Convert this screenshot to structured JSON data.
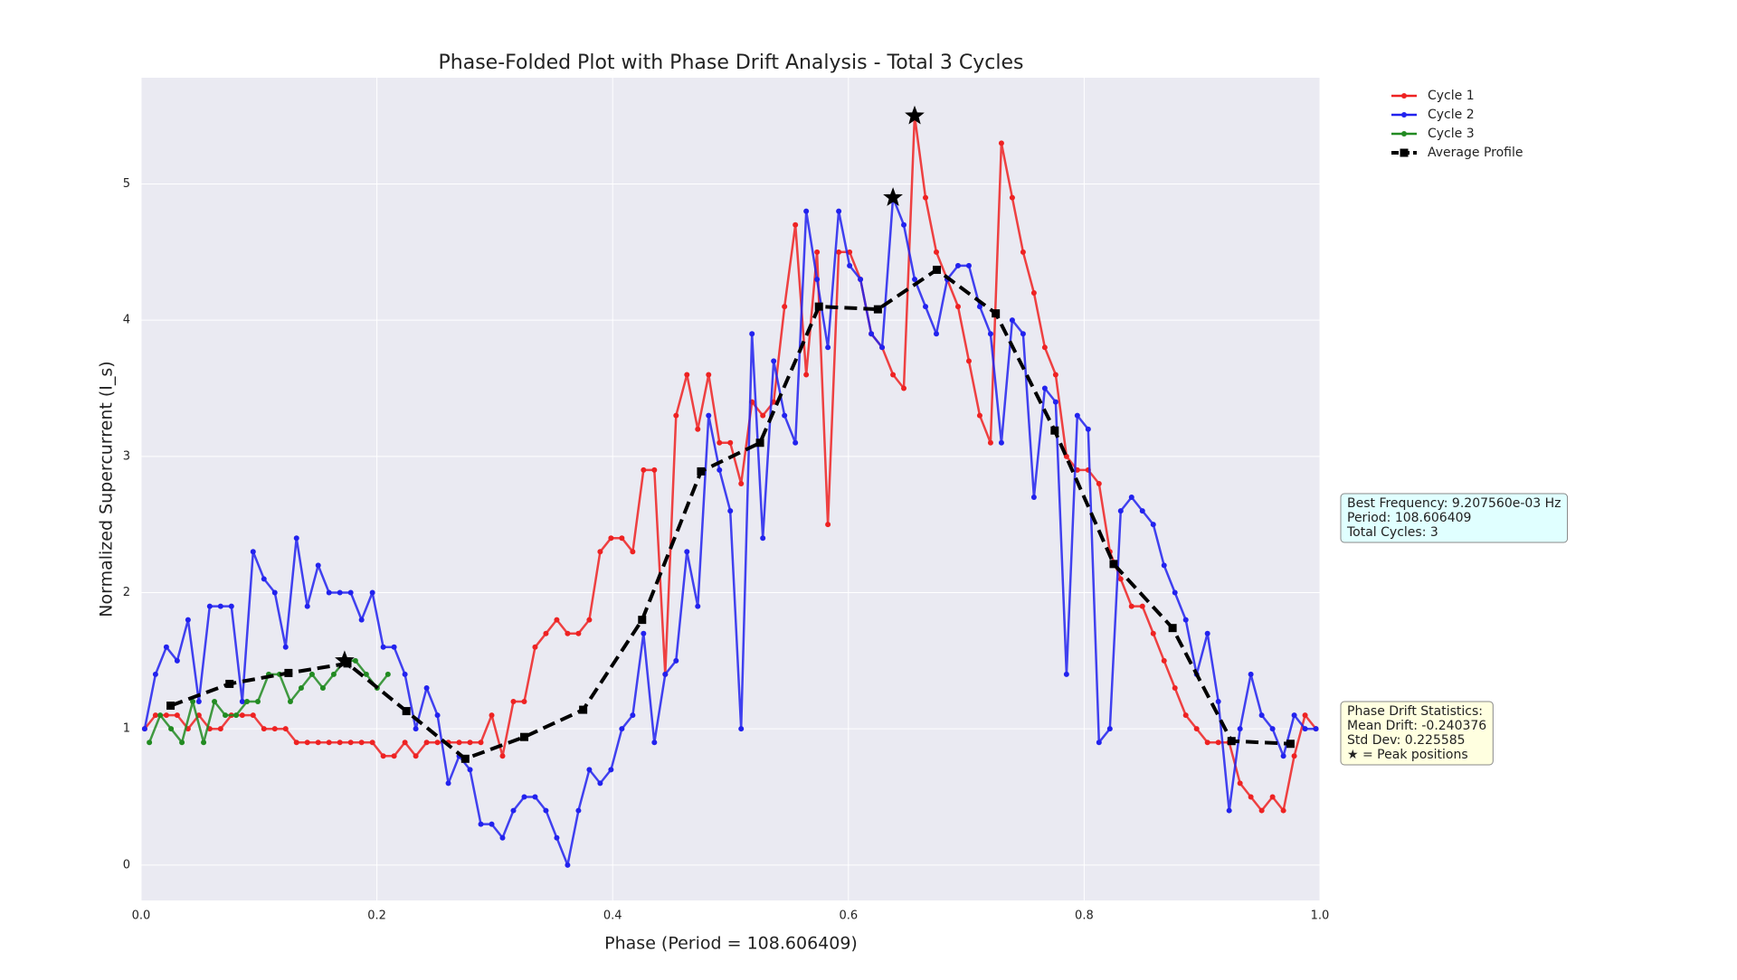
{
  "chart_data": {
    "type": "line",
    "title": "Phase-Folded Plot with Phase Drift Analysis - Total 3 Cycles",
    "xlabel": "Phase (Period = 108.606409)",
    "ylabel": "Normalized Supercurrent (I_s)",
    "xlim": [
      0,
      1
    ],
    "ylim": [
      -0.26,
      5.78
    ],
    "xticks": [
      {
        "value": 0,
        "label": "0.0"
      },
      0.2,
      0.4,
      0.6,
      0.8,
      {
        "value": 1,
        "label": "1.0"
      }
    ],
    "yticks": [
      0,
      1,
      2,
      3,
      4,
      5
    ],
    "grid": true,
    "legend": "upper right outside",
    "x": [
      0.003,
      0.0122,
      0.0214,
      0.0306,
      0.0398,
      0.049,
      0.0582,
      0.0674,
      0.0766,
      0.0858,
      0.095,
      0.1042,
      0.1134,
      0.1226,
      0.1318,
      0.141,
      0.1502,
      0.1594,
      0.1686,
      0.1778,
      0.187,
      0.1962,
      0.2054,
      0.2146,
      0.2238,
      0.233,
      0.2422,
      0.2514,
      0.2606,
      0.2698,
      0.279,
      0.2882,
      0.2974,
      0.3066,
      0.3158,
      0.325,
      0.3342,
      0.3434,
      0.3526,
      0.3618,
      0.371,
      0.3802,
      0.3894,
      0.3986,
      0.4078,
      0.417,
      0.4262,
      0.4354,
      0.4446,
      0.4538,
      0.463,
      0.4722,
      0.4814,
      0.4906,
      0.4998,
      0.509,
      0.5182,
      0.5274,
      0.5366,
      0.5458,
      0.555,
      0.5642,
      0.5734,
      0.5826,
      0.5918,
      0.601,
      0.6102,
      0.6194,
      0.6286,
      0.6378,
      0.647,
      0.6562,
      0.6654,
      0.6746,
      0.6838,
      0.693,
      0.7022,
      0.7114,
      0.7206,
      0.7298,
      0.739,
      0.7482,
      0.7574,
      0.7666,
      0.7758,
      0.785,
      0.7942,
      0.8034,
      0.8126,
      0.8218,
      0.831,
      0.8402,
      0.8494,
      0.8586,
      0.8678,
      0.877,
      0.8862,
      0.8954,
      0.9046,
      0.9138,
      0.923,
      0.9322,
      0.9414,
      0.9506,
      0.9598,
      0.969,
      0.9782,
      0.9874,
      0.9966
    ],
    "series": [
      {
        "name": "Cycle 1",
        "color": "#ee2222",
        "marker": "circle",
        "style": "solid",
        "peak": true,
        "values": [
          1.0,
          1.1,
          1.1,
          1.1,
          1.0,
          1.1,
          1.0,
          1.0,
          1.1,
          1.1,
          1.1,
          1.0,
          1.0,
          1.0,
          0.9,
          0.9,
          0.9,
          0.9,
          0.9,
          0.9,
          0.9,
          0.9,
          0.8,
          0.8,
          0.9,
          0.8,
          0.9,
          0.9,
          0.9,
          0.9,
          0.9,
          0.9,
          1.1,
          0.8,
          1.2,
          1.2,
          1.6,
          1.7,
          1.8,
          1.7,
          1.7,
          1.8,
          2.3,
          2.4,
          2.4,
          2.3,
          2.9,
          2.9,
          1.4,
          3.3,
          3.6,
          3.2,
          3.6,
          3.1,
          3.1,
          2.8,
          3.4,
          3.3,
          3.4,
          4.1,
          4.7,
          3.6,
          4.5,
          2.5,
          4.5,
          4.5,
          4.3,
          3.9,
          3.8,
          3.6,
          3.5,
          5.5,
          4.9,
          4.5,
          4.3,
          4.1,
          3.7,
          3.3,
          3.1,
          5.3,
          4.9,
          4.5,
          4.2,
          3.8,
          3.6,
          3.0,
          2.9,
          2.9,
          2.8,
          2.3,
          2.1,
          1.9,
          1.9,
          1.7,
          1.5,
          1.3,
          1.1,
          1.0,
          0.9,
          0.9,
          0.9,
          0.6,
          0.5,
          0.4,
          0.5,
          0.4,
          0.8,
          1.1,
          1.0
        ]
      },
      {
        "name": "Cycle 2",
        "color": "#2222ee",
        "marker": "circle",
        "style": "solid",
        "peak": true,
        "values": [
          1.0,
          1.4,
          1.6,
          1.5,
          1.8,
          1.2,
          1.9,
          1.9,
          1.9,
          1.2,
          2.3,
          2.1,
          2.0,
          1.6,
          2.4,
          1.9,
          2.2,
          2.0,
          2.0,
          2.0,
          1.8,
          2.0,
          1.6,
          1.6,
          1.4,
          1.0,
          1.3,
          1.1,
          0.6,
          0.8,
          0.7,
          0.3,
          0.3,
          0.2,
          0.4,
          0.5,
          0.5,
          0.4,
          0.2,
          0.0,
          0.4,
          0.7,
          0.6,
          0.7,
          1.0,
          1.1,
          1.7,
          0.9,
          1.4,
          1.5,
          2.3,
          1.9,
          3.3,
          2.9,
          2.6,
          1.0,
          3.9,
          2.4,
          3.7,
          3.3,
          3.1,
          4.8,
          4.3,
          3.8,
          4.8,
          4.4,
          4.3,
          3.9,
          3.8,
          4.9,
          4.7,
          4.3,
          4.1,
          3.9,
          4.3,
          4.4,
          4.4,
          4.1,
          3.9,
          3.1,
          4.0,
          3.9,
          2.7,
          3.5,
          3.4,
          1.4,
          3.3,
          3.2,
          0.9,
          1.0,
          2.6,
          2.7,
          2.6,
          2.5,
          2.2,
          2.0,
          1.8,
          1.4,
          1.7,
          1.2,
          0.4,
          1.0,
          1.4,
          1.1,
          1.0,
          0.8,
          1.1,
          1.0,
          1.0
        ]
      },
      {
        "name": "Cycle 3",
        "color": "#228b22",
        "marker": "circle",
        "style": "solid",
        "peak": true,
        "x": [
          0.007,
          0.0162,
          0.0254,
          0.0346,
          0.0438,
          0.053,
          0.0622,
          0.0714,
          0.0806,
          0.0898,
          0.099,
          0.1082,
          0.1174,
          0.1266,
          0.1358,
          0.145,
          0.1542,
          0.1634,
          0.1726,
          0.1818,
          0.191,
          0.2002,
          0.2094
        ],
        "values": [
          0.9,
          1.1,
          1.0,
          0.9,
          1.2,
          0.9,
          1.2,
          1.1,
          1.1,
          1.2,
          1.2,
          1.4,
          1.4,
          1.2,
          1.3,
          1.4,
          1.3,
          1.4,
          1.5,
          1.5,
          1.4,
          1.3,
          1.4
        ]
      },
      {
        "name": "Average Profile",
        "color": "#000000",
        "marker": "square",
        "style": "dashed",
        "peak": false,
        "x": [
          0.025,
          0.075,
          0.125,
          0.175,
          0.225,
          0.275,
          0.325,
          0.375,
          0.425,
          0.475,
          0.525,
          0.575,
          0.625,
          0.675,
          0.725,
          0.775,
          0.825,
          0.875,
          0.925,
          0.975
        ],
        "values": [
          1.17,
          1.33,
          1.41,
          1.48,
          1.13,
          0.78,
          0.94,
          1.14,
          1.8,
          2.89,
          3.1,
          4.1,
          4.08,
          4.37,
          4.05,
          3.19,
          2.21,
          1.74,
          0.91,
          0.89
        ]
      }
    ],
    "annotations": [
      {
        "color": "#e0ffff",
        "lines": [
          "Best Frequency: 9.207560e-03 Hz",
          "Period: 108.606409",
          "Total Cycles: 3"
        ]
      },
      {
        "color": "#ffffe0",
        "lines": [
          "Phase Drift Statistics:",
          "Mean Drift: -0.240376",
          "Std Dev: 0.225585",
          "★ = Peak positions"
        ]
      }
    ]
  }
}
